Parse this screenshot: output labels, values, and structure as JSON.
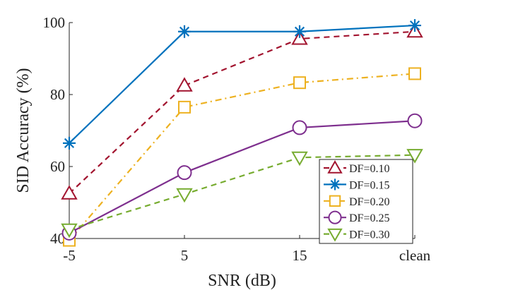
{
  "chart_data": {
    "type": "line",
    "title": "",
    "xlabel": "SNR (dB)",
    "ylabel": "SID Accuracy (%)",
    "categories": [
      "-5",
      "5",
      "15",
      "clean"
    ],
    "ylim": [
      40,
      100
    ],
    "yticks": [
      "40",
      "60",
      "80",
      "100"
    ],
    "grid": false,
    "legend_position": "bottom-right",
    "series": [
      {
        "name": "DF=0.10",
        "values": [
          52.5,
          82.5,
          95.5,
          97.5
        ],
        "color": "#a2142f",
        "marker": "triangle-up",
        "dash": "dashed"
      },
      {
        "name": "DF=0.15",
        "values": [
          66.5,
          97.5,
          97.5,
          99.2
        ],
        "color": "#0072bd",
        "marker": "asterisk",
        "dash": "solid"
      },
      {
        "name": "DF=0.20",
        "values": [
          39.5,
          76.5,
          83.3,
          85.8
        ],
        "color": "#edb120",
        "marker": "square",
        "dash": "dashdot"
      },
      {
        "name": "DF=0.25",
        "values": [
          41.5,
          58.3,
          70.8,
          72.7
        ],
        "color": "#7e2f8e",
        "marker": "circle",
        "dash": "solid"
      },
      {
        "name": "DF=0.30",
        "values": [
          42.5,
          52.3,
          62.5,
          63.2
        ],
        "color": "#77ac30",
        "marker": "triangle-down",
        "dash": "dashed"
      }
    ]
  }
}
